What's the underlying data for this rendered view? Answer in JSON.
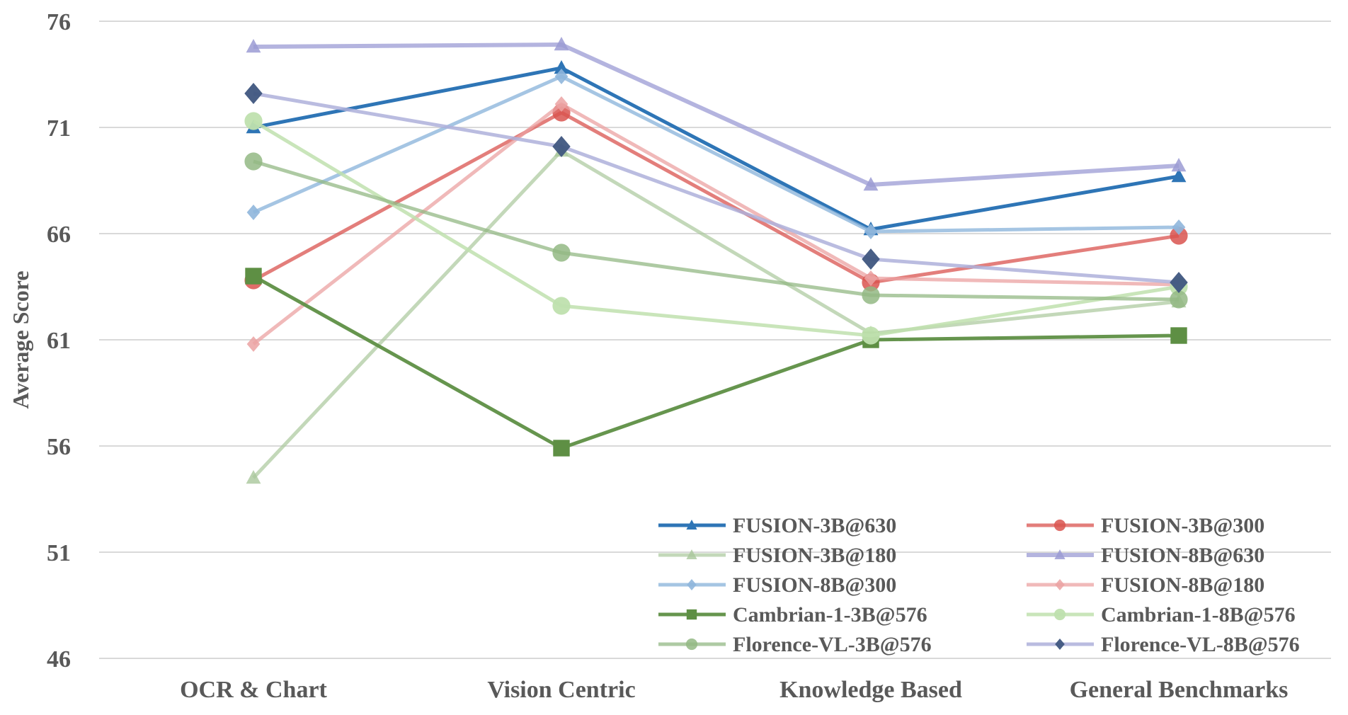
{
  "chart_data": {
    "type": "line",
    "title": "",
    "xlabel": "",
    "ylabel": "Average Score",
    "ylim": [
      46,
      76
    ],
    "yticks": [
      46,
      51,
      56,
      61,
      66,
      71,
      76
    ],
    "grid": true,
    "legend_position": "bottom-right",
    "categories": [
      "OCR & Chart",
      "Vision Centric",
      "Knowledge Based",
      "General Benchmarks"
    ],
    "series": [
      {
        "name": "FUSION-3B@630",
        "values": [
          71.0,
          73.8,
          66.2,
          68.7
        ],
        "color": "#2E75B6",
        "marker": "triangle",
        "opacity": 1.0,
        "width": 5
      },
      {
        "name": "FUSION-3B@300",
        "values": [
          63.8,
          71.7,
          63.7,
          65.9
        ],
        "color": "#D9534F",
        "marker": "circle",
        "opacity": 0.75,
        "width": 5
      },
      {
        "name": "FUSION-3B@180",
        "values": [
          54.5,
          69.9,
          61.3,
          62.8
        ],
        "color": "#A9C79B",
        "marker": "triangle",
        "opacity": 0.7,
        "width": 5
      },
      {
        "name": "FUSION-8B@630",
        "values": [
          74.8,
          74.9,
          68.3,
          69.2
        ],
        "color": "#9B9BD4",
        "marker": "triangle",
        "opacity": 0.75,
        "width": 6
      },
      {
        "name": "FUSION-8B@300",
        "values": [
          67.0,
          73.4,
          66.1,
          66.3
        ],
        "color": "#8FB6DC",
        "marker": "diamond",
        "opacity": 0.8,
        "width": 5
      },
      {
        "name": "FUSION-8B@180",
        "values": [
          60.8,
          72.1,
          63.9,
          63.6
        ],
        "color": "#EBA2A2",
        "marker": "diamond",
        "opacity": 0.75,
        "width": 5
      },
      {
        "name": "Cambrian-1-3B@576",
        "values": [
          64.0,
          55.9,
          61.0,
          61.2
        ],
        "color": "#5E8F44",
        "marker": "square",
        "opacity": 0.95,
        "width": 5
      },
      {
        "name": "Cambrian-1-8B@576",
        "values": [
          71.3,
          62.6,
          61.2,
          63.5
        ],
        "color": "#BFE0AE",
        "marker": "circle",
        "opacity": 0.85,
        "width": 5
      },
      {
        "name": "Florence-VL-3B@576",
        "values": [
          69.4,
          65.1,
          63.1,
          62.9
        ],
        "color": "#93B884",
        "marker": "circle",
        "opacity": 0.75,
        "width": 5
      },
      {
        "name": "Florence-VL-8B@576",
        "values": [
          72.6,
          70.1,
          64.8,
          63.7
        ],
        "color": "#AEB0DA",
        "marker": "diamond",
        "opacity": 0.85,
        "width": 5,
        "marker_color": "#3F5680"
      }
    ]
  }
}
